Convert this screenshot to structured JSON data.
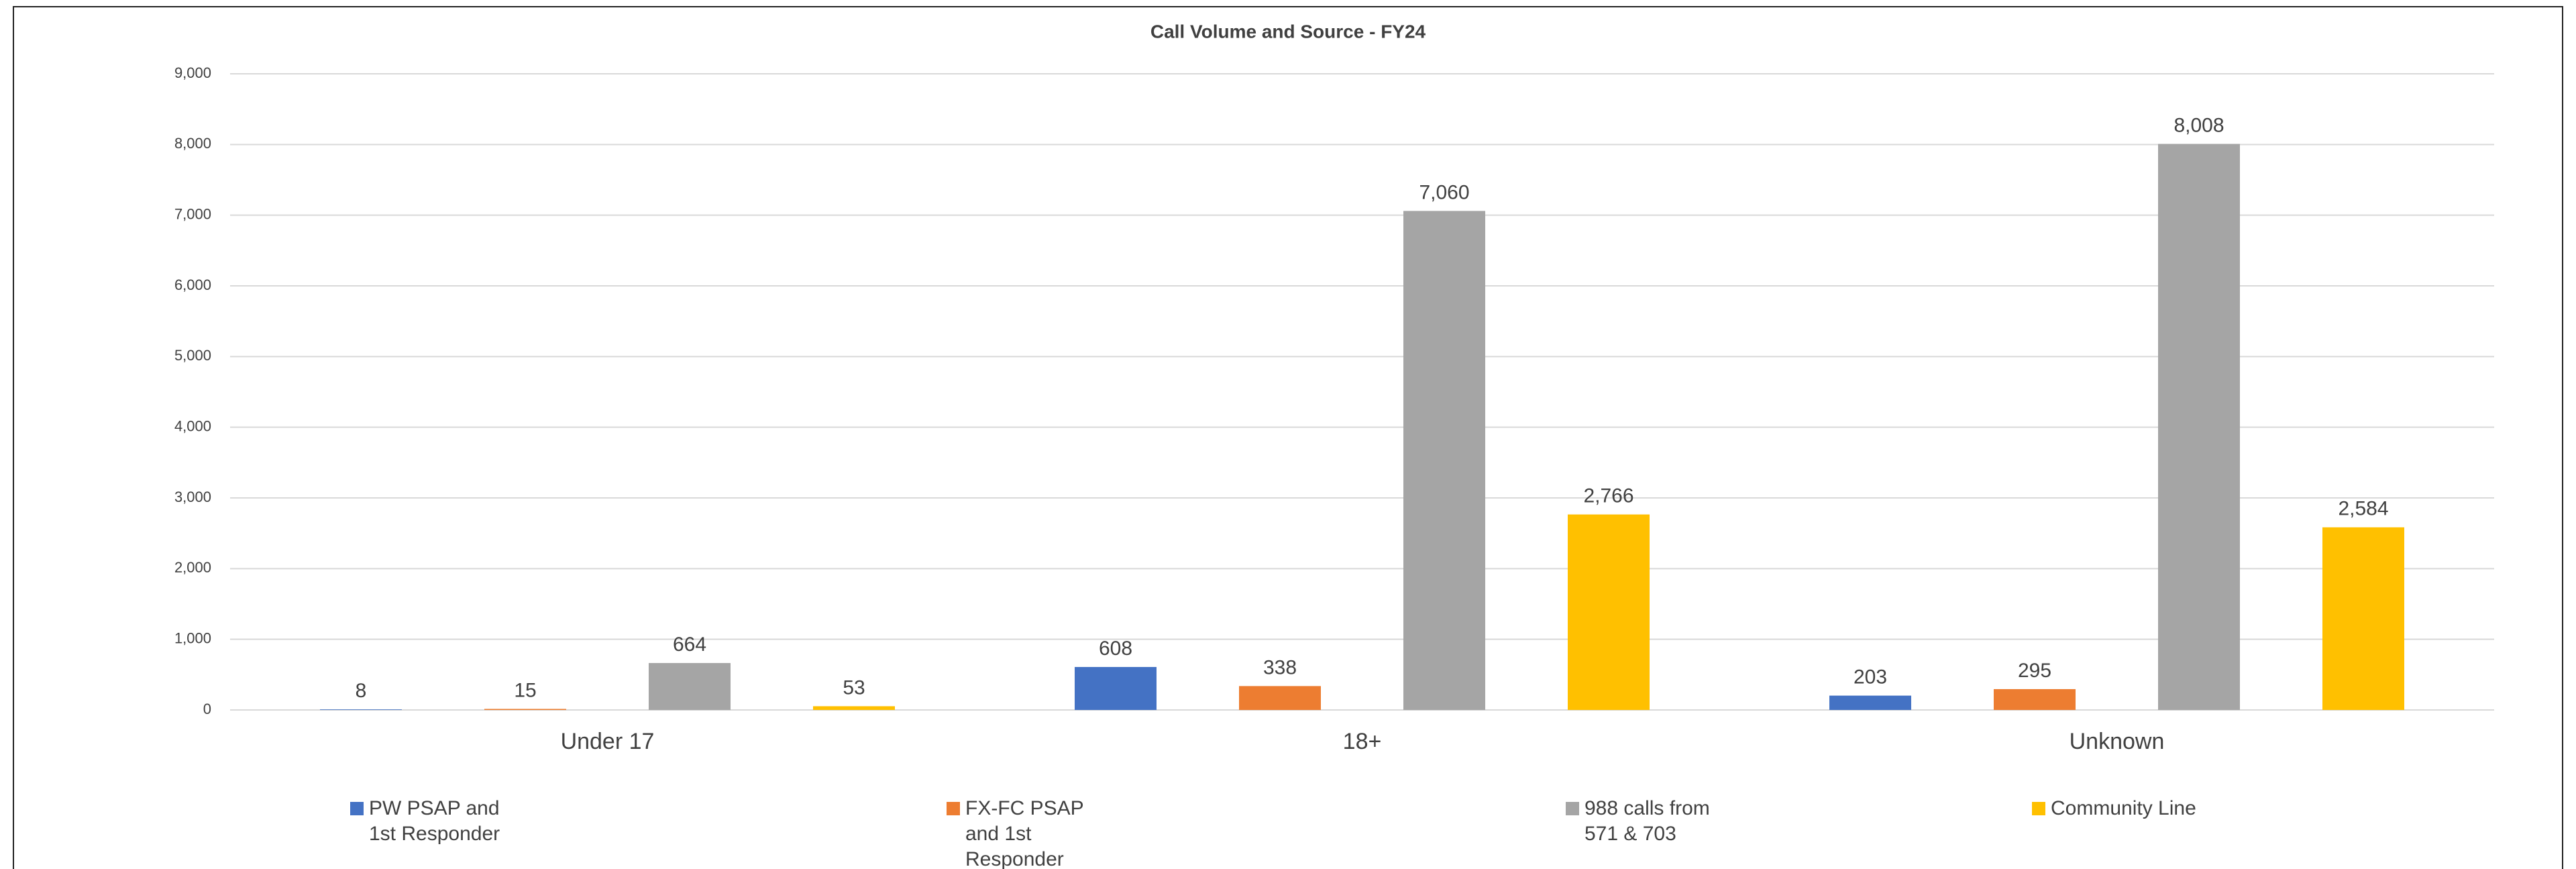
{
  "chart_data": {
    "type": "bar",
    "title": "Call Volume and Source - FY24",
    "categories": [
      "Under 17",
      "18+",
      "Unknown"
    ],
    "series": [
      {
        "name": "PW PSAP and 1st Responder",
        "color": "#4472c4",
        "values": [
          8,
          608,
          203
        ],
        "value_labels": [
          "8",
          "608",
          "203"
        ]
      },
      {
        "name": "FX-FC PSAP and 1st Responder",
        "color": "#ed7d31",
        "values": [
          15,
          338,
          295
        ],
        "value_labels": [
          "15",
          "338",
          "295"
        ]
      },
      {
        "name": "988 calls from 571 & 703",
        "color": "#a5a5a5",
        "values": [
          664,
          7060,
          8008
        ],
        "value_labels": [
          "664",
          "7,060",
          "8,008"
        ]
      },
      {
        "name": "Community Line",
        "color": "#ffc000",
        "values": [
          53,
          2766,
          2584
        ],
        "value_labels": [
          "53",
          "2,766",
          "2,584"
        ]
      }
    ],
    "ylim": [
      0,
      9000
    ],
    "yticks": [
      0,
      {
        "value": 1000,
        "label": "1,000"
      },
      {
        "value": 2000,
        "label": "2,000"
      },
      {
        "value": 3000,
        "label": "3,000"
      },
      {
        "value": 4000,
        "label": "4,000"
      },
      {
        "value": 5000,
        "label": "5,000"
      },
      {
        "value": 6000,
        "label": "6,000"
      },
      {
        "value": 7000,
        "label": "7,000"
      },
      {
        "value": 8000,
        "label": "8,000"
      },
      {
        "value": 9000,
        "label": "9,000"
      }
    ],
    "grid": true,
    "legend": "bottom"
  }
}
